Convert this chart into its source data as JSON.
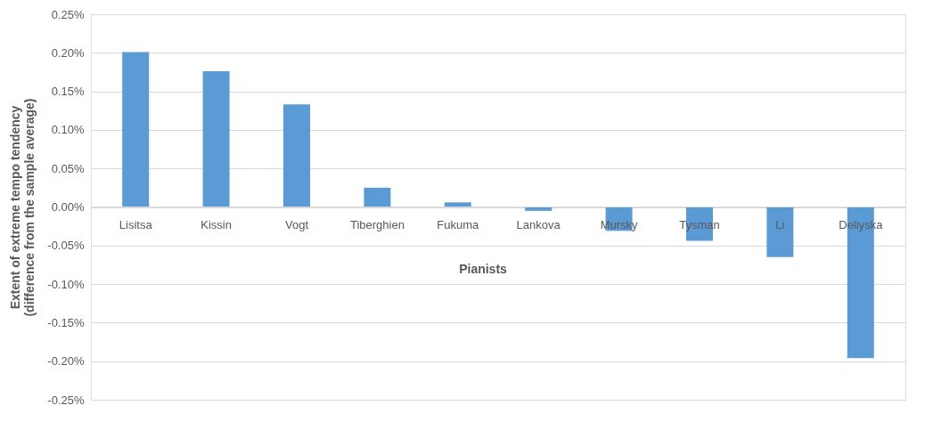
{
  "chart_data": {
    "type": "bar",
    "categories": [
      "Lisitsa",
      "Kissin",
      "Vogt",
      "Tiberghien",
      "Fukuma",
      "Lankova",
      "Mursky",
      "Tysman",
      "Li",
      "Deliyska"
    ],
    "values": [
      0.201,
      0.176,
      0.133,
      0.025,
      0.006,
      -0.005,
      -0.031,
      -0.044,
      -0.065,
      -0.196
    ],
    "color": "#5b9bd5",
    "xlabel": "Pianists",
    "ylabel": "Extent of extreme tempo tendency (difference from the sample average)",
    "ylim": [
      -0.25,
      0.25
    ],
    "yticks": [
      {
        "value": -0.25,
        "label": "-0.25%"
      },
      {
        "value": -0.2,
        "label": "-0.20%"
      },
      {
        "value": -0.15,
        "label": "-0.15%"
      },
      {
        "value": -0.1,
        "label": "-0.10%"
      },
      {
        "value": -0.05,
        "label": "-0.05%"
      },
      {
        "value": 0,
        "label": "0.00%"
      },
      {
        "value": 0.05,
        "label": "0.05%"
      },
      {
        "value": 0.1,
        "label": "0.10%"
      },
      {
        "value": 0.15,
        "label": "0.15%"
      },
      {
        "value": 0.2,
        "label": "0.20%"
      },
      {
        "value": 0.25,
        "label": "0.25%"
      }
    ],
    "grid": "y"
  }
}
